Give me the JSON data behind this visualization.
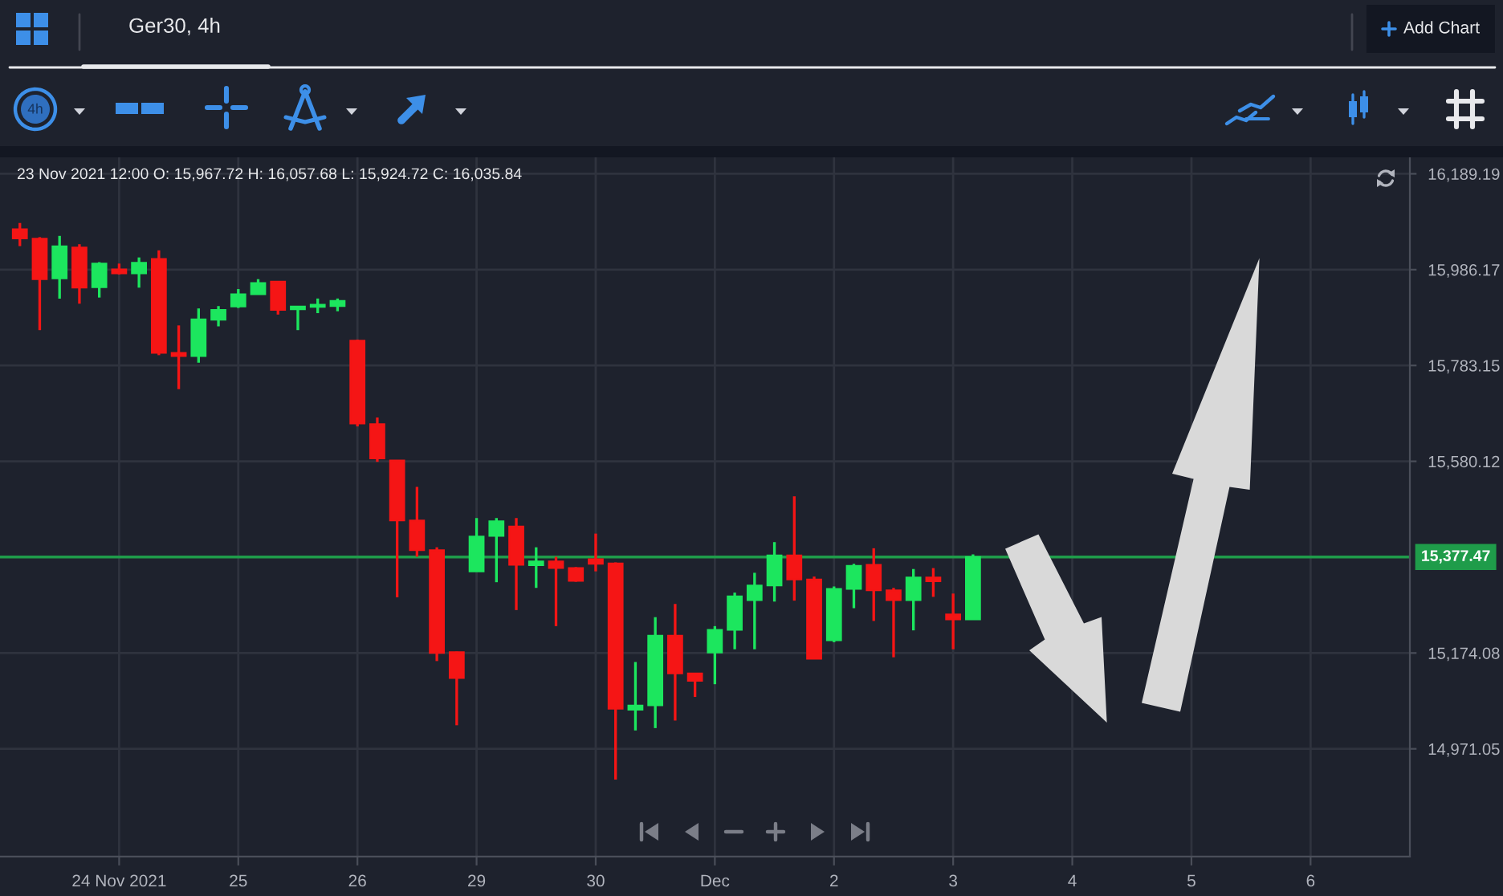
{
  "chart_data": {
    "type": "candlestick",
    "title": "Ger30, 4h",
    "subtitle": "23 Nov 2021 12:00 O: 15,967.72 H: 16,057.68 L: 15,924.72 C: 16,035.84",
    "annotations": [
      "4h",
      "Add Chart"
    ],
    "categories": [
      null,
      null,
      null,
      null,
      null,
      "24 Nov 2021",
      null,
      null,
      null,
      null,
      null,
      "25",
      null,
      null,
      null,
      null,
      null,
      "26",
      null,
      null,
      null,
      null,
      null,
      "29",
      null,
      null,
      null,
      null,
      null,
      "30",
      null,
      null,
      null,
      null,
      null,
      "Dec",
      null,
      null,
      null,
      null,
      null,
      "2",
      null,
      null,
      null,
      null,
      null,
      "3",
      null,
      null,
      null,
      null,
      null,
      "4",
      null,
      null,
      null,
      null,
      null,
      "5",
      null,
      null,
      null,
      null,
      null,
      "6",
      null,
      null,
      null,
      null
    ],
    "ohlc": [
      [
        16072,
        16085,
        16036,
        16052
      ],
      [
        16052,
        16055,
        15858,
        15966
      ],
      [
        15967.72,
        16057.68,
        15924.72,
        16035.84
      ],
      [
        16033,
        16040,
        15914,
        15948
      ],
      [
        15949,
        16002,
        15927,
        15999
      ],
      [
        15987,
        15999,
        15976,
        15978
      ],
      [
        15978,
        16012,
        15948,
        16001
      ],
      [
        16009,
        16027,
        15805,
        15810
      ],
      [
        15810,
        15868,
        15733,
        15803
      ],
      [
        15803,
        15904,
        15789,
        15881
      ],
      [
        15880,
        15909,
        15866,
        15901
      ],
      [
        15908,
        15945,
        15905,
        15934
      ],
      [
        15934,
        15966,
        15934,
        15958
      ],
      [
        15961,
        15962,
        15891,
        15901
      ],
      [
        15902,
        15908,
        15858,
        15908
      ],
      [
        15907,
        15925,
        15894,
        15912
      ],
      [
        15909,
        15925,
        15898,
        15920
      ],
      [
        15836,
        15838,
        15654,
        15660
      ],
      [
        15659,
        15673,
        15579,
        15586
      ],
      [
        15582,
        15583,
        15292,
        15455
      ],
      [
        15455,
        15526,
        15378,
        15392
      ],
      [
        15392,
        15398,
        15157,
        15174
      ],
      [
        15176,
        15177,
        15021,
        15121
      ],
      [
        15347,
        15460,
        15347,
        15421
      ],
      [
        15422,
        15460,
        15324,
        15453
      ],
      [
        15442,
        15460,
        15265,
        15361
      ],
      [
        15360,
        15398,
        15312,
        15368
      ],
      [
        15368,
        15378,
        15231,
        15354
      ],
      [
        15354,
        15356,
        15325,
        15327
      ],
      [
        15373,
        15427,
        15347,
        15363
      ],
      [
        15364,
        15366,
        14906,
        15056
      ],
      [
        15054,
        15155,
        15010,
        15063
      ],
      [
        15063,
        15250,
        15015,
        15211
      ],
      [
        15211,
        15278,
        15031,
        15131
      ],
      [
        15131,
        15132,
        15081,
        15115
      ],
      [
        15175,
        15231,
        15108,
        15223
      ],
      [
        15223,
        15302,
        15182,
        15294
      ],
      [
        15286,
        15344,
        15182,
        15317
      ],
      [
        15317,
        15409,
        15283,
        15381
      ],
      [
        15381,
        15506,
        15285,
        15330
      ],
      [
        15330,
        15336,
        15162,
        15162
      ],
      [
        15201,
        15315,
        15197,
        15310
      ],
      [
        15310,
        15363,
        15269,
        15359
      ],
      [
        15361,
        15396,
        15242,
        15307
      ],
      [
        15307,
        15312,
        15165,
        15286
      ],
      [
        15286,
        15352,
        15222,
        15334
      ],
      [
        15334,
        15354,
        15293,
        15326
      ],
      [
        15256,
        15300,
        15182,
        15245
      ],
      [
        15245,
        15383,
        15245,
        15377.47
      ],
      null,
      null,
      null,
      null,
      null,
      null,
      null,
      null,
      null,
      null,
      null,
      null,
      null,
      null,
      null,
      null,
      null,
      null,
      null,
      null,
      null
    ],
    "colors": [
      "#f51515",
      "#f51515",
      "#1ce65e",
      "#f51515",
      "#1ce65e",
      "#f51515",
      "#1ce65e",
      "#f51515",
      "#f51515",
      "#1ce65e",
      "#1ce65e",
      "#1ce65e",
      "#1ce65e",
      "#f51515",
      "#1ce65e",
      "#1ce65e",
      "#1ce65e",
      "#f51515",
      "#f51515",
      "#f51515",
      "#f51515",
      "#f51515",
      "#f51515",
      "#1ce65e",
      "#1ce65e",
      "#f51515",
      "#1ce65e",
      "#f51515",
      "#f51515",
      "#f51515",
      "#f51515",
      "#1ce65e",
      "#1ce65e",
      "#f51515",
      "#f51515",
      "#1ce65e",
      "#1ce65e",
      "#1ce65e",
      "#1ce65e",
      "#f51515",
      "#f51515",
      "#1ce65e",
      "#1ce65e",
      "#f51515",
      "#f51515",
      "#1ce65e",
      "#f51515",
      "#f51515",
      "#1ce65e",
      null,
      null,
      null,
      null,
      null,
      null,
      null,
      null,
      null,
      null,
      null,
      null,
      null,
      null,
      null,
      null,
      null,
      null,
      null,
      null,
      null
    ],
    "ylim": [
      14743,
      16224
    ],
    "yticks": [
      {
        "value": 16189.19,
        "label": "16,189.19"
      },
      {
        "value": 15986.17,
        "label": "15,986.17"
      },
      {
        "value": 15783.15,
        "label": "15,783.15"
      },
      {
        "value": 15580.12,
        "label": "15,580.12"
      },
      {
        "value": 15174.08,
        "label": "15,174.08"
      },
      {
        "value": 14971.05,
        "label": "14,971.05"
      }
    ],
    "grid": true,
    "ref_lines": [
      {
        "axis": "y",
        "value": 15377.47,
        "label": "15,377.47",
        "color": "#1f9c4a"
      }
    ]
  }
}
